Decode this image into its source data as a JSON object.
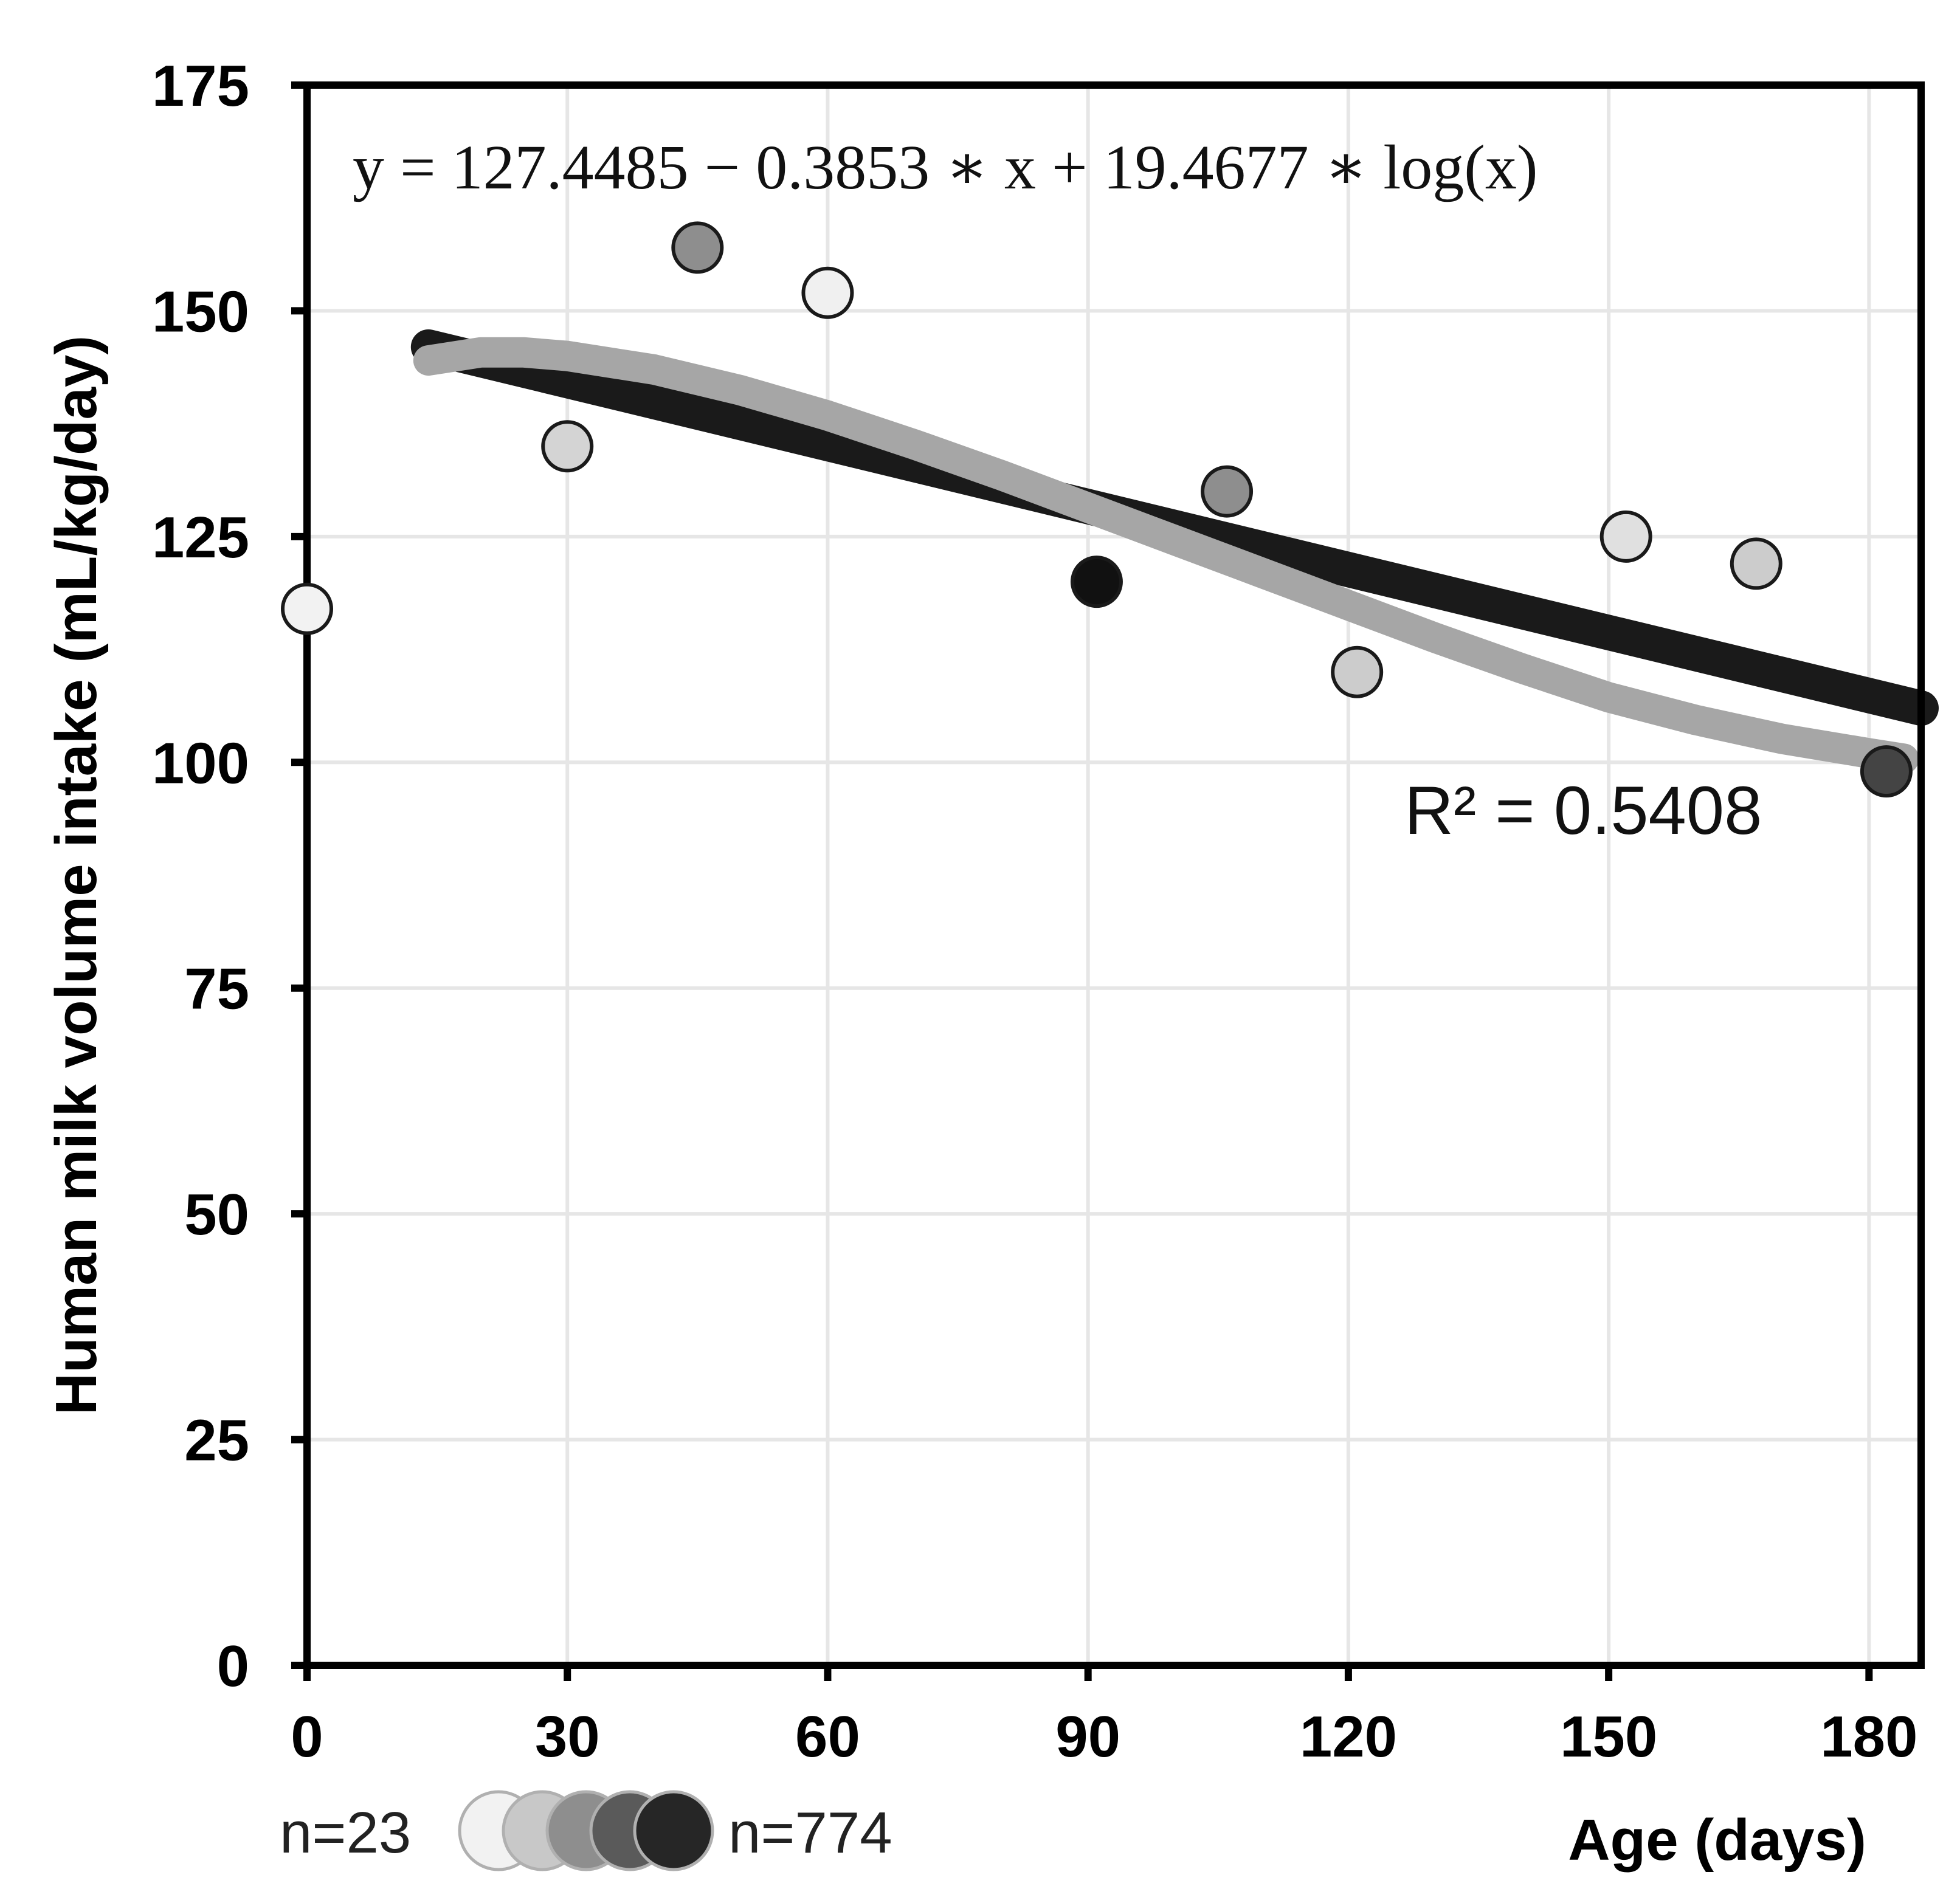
{
  "chart_data": {
    "type": "scatter",
    "title": "",
    "xlabel": "Age (days)",
    "ylabel": "Human milk volume intake (mL/kg/day)",
    "xlim": [
      0,
      186
    ],
    "ylim": [
      0,
      175
    ],
    "x_ticks": [
      0,
      30,
      60,
      90,
      120,
      150,
      180
    ],
    "y_ticks": [
      0,
      25,
      50,
      75,
      100,
      125,
      150,
      175
    ],
    "grid": true,
    "points": [
      {
        "x": 0,
        "y": 117,
        "shade": "#f2f2f2"
      },
      {
        "x": 30,
        "y": 135,
        "shade": "#d4d4d4"
      },
      {
        "x": 45,
        "y": 157,
        "shade": "#8e8e8e"
      },
      {
        "x": 60,
        "y": 152,
        "shade": "#f0f0f0"
      },
      {
        "x": 91,
        "y": 120,
        "shade": "#111111"
      },
      {
        "x": 106,
        "y": 130,
        "shade": "#8e8e8e"
      },
      {
        "x": 121,
        "y": 110,
        "shade": "#cccccc"
      },
      {
        "x": 152,
        "y": 125,
        "shade": "#e0e0e0"
      },
      {
        "x": 167,
        "y": 122,
        "shade": "#cccccc"
      },
      {
        "x": 182,
        "y": 99,
        "shade": "#444444"
      }
    ],
    "fits": [
      {
        "name": "linear trend",
        "color": "#1a1a1a",
        "x": [
          14,
          186
        ],
        "y": [
          146,
          106
        ]
      },
      {
        "name": "log model",
        "color": "#a6a6a6",
        "x": [
          14,
          20,
          25,
          30,
          40,
          50,
          60,
          70,
          80,
          90,
          100,
          110,
          120,
          130,
          140,
          150,
          160,
          170,
          180,
          184
        ],
        "y": [
          144.5,
          145.4,
          145.4,
          145.0,
          143.5,
          141.2,
          138.4,
          135.2,
          131.8,
          128.2,
          124.6,
          121.0,
          117.4,
          113.8,
          110.4,
          107.2,
          104.7,
          102.6,
          101.0,
          100.4
        ]
      }
    ],
    "equation": "y = 127.4485  − 0.3853 ∗ x  + 19.4677 ∗ log(x)",
    "r_squared_label": "R² = 0.5408",
    "legend": {
      "min_label": "n=23",
      "max_label": "n=774",
      "shades": [
        "#f2f2f2",
        "#c8c8c8",
        "#8e8e8e",
        "#5a5a5a",
        "#262626"
      ]
    }
  }
}
